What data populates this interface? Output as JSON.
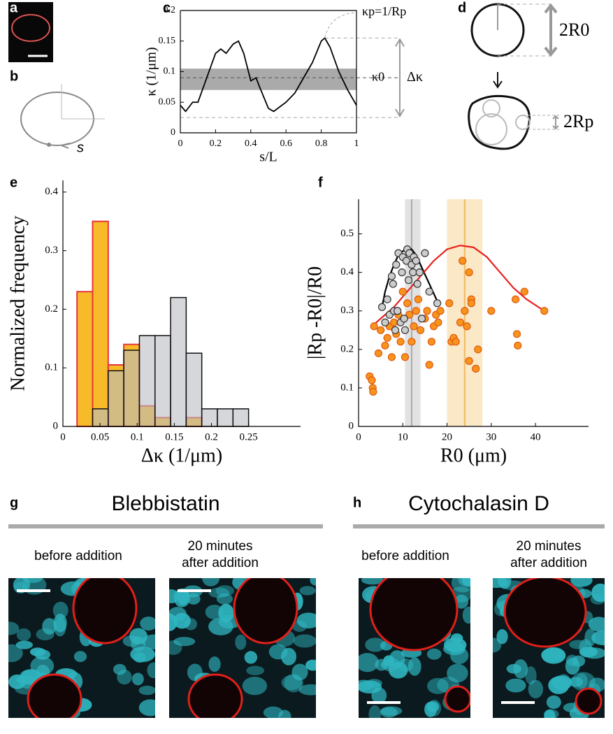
{
  "panel_labels": [
    "a",
    "b",
    "c",
    "d",
    "e",
    "f",
    "g",
    "h"
  ],
  "diagrams": {
    "b_label": "s",
    "d_labels": [
      "2R0",
      "2Rp"
    ]
  },
  "chart_data": [
    {
      "type": "line",
      "xlabel": "s/L",
      "ylabel": "κ (1/μm)",
      "xlim": [
        0,
        1
      ],
      "ylim": [
        0,
        0.2
      ],
      "xticks": [
        0,
        0.2,
        0.4,
        0.6,
        0.8,
        1
      ],
      "yticks": [
        0,
        0.05,
        0.1,
        0.15,
        0.2
      ],
      "x": [
        0,
        0.03,
        0.07,
        0.1,
        0.15,
        0.2,
        0.23,
        0.26,
        0.3,
        0.33,
        0.36,
        0.4,
        0.43,
        0.45,
        0.5,
        0.53,
        0.6,
        0.65,
        0.7,
        0.75,
        0.8,
        0.82,
        0.85,
        0.9,
        0.95,
        1
      ],
      "values": [
        0.045,
        0.035,
        0.05,
        0.05,
        0.09,
        0.13,
        0.137,
        0.13,
        0.145,
        0.15,
        0.13,
        0.085,
        0.09,
        0.075,
        0.04,
        0.035,
        0.05,
        0.065,
        0.09,
        0.115,
        0.15,
        0.155,
        0.14,
        0.1,
        0.07,
        0.045
      ],
      "color": "#000000",
      "band": [
        0.07,
        0.105
      ],
      "reference_lines": [
        0.155,
        0.09,
        0.025
      ],
      "annotations": [
        "κp=1/Rp",
        "κ0",
        "Δκ"
      ]
    },
    {
      "type": "histogram",
      "xlabel": "Δκ (1/μm)",
      "ylabel": "Normalized frequency",
      "xlim": [
        0,
        0.32
      ],
      "ylim": [
        0,
        0.42
      ],
      "xticks": [
        0,
        0.05,
        0.1,
        0.15,
        0.2,
        0.25
      ],
      "yticks": [
        0,
        0.1,
        0.2,
        0.3,
        0.4
      ],
      "bins": [
        0.019,
        0.04,
        0.061,
        0.082,
        0.103,
        0.124,
        0.145,
        0.166,
        0.187,
        0.208,
        0.229,
        0.25
      ],
      "series": [
        {
          "color": "#f7bb2a",
          "values": [
            0.23,
            0.35,
            0.105,
            0.14,
            0.035,
            0.015,
            0,
            0.015,
            0,
            0,
            0
          ]
        },
        {
          "color": "#b9bcc2",
          "values": [
            0,
            0.03,
            0.095,
            0.13,
            0.155,
            0.155,
            0.22,
            0.125,
            0.03,
            0.03,
            0.03
          ]
        }
      ]
    },
    {
      "type": "scatter",
      "xlabel": "R0 (μm)",
      "ylabel": "|Rp -R0|/R0",
      "xlim": [
        0,
        52
      ],
      "ylim": [
        0,
        0.59
      ],
      "xticks": [
        0,
        10,
        20,
        30,
        40
      ],
      "yticks": [
        0,
        0.1,
        0.2,
        0.3,
        0.4,
        0.5
      ],
      "bands": [
        {
          "range": [
            10.5,
            14
          ],
          "center": 12,
          "color": "#cfcfcf"
        },
        {
          "range": [
            20,
            28
          ],
          "center": 24,
          "color": "#f7d9a0"
        }
      ],
      "series": [
        {
          "color": "#cccccc",
          "x": [
            5.3,
            6,
            6.5,
            7,
            7.5,
            7.8,
            8,
            8.3,
            8.5,
            8.8,
            9,
            9.5,
            9.8,
            10,
            10.3,
            10.5,
            10.8,
            11,
            11.3,
            11.5,
            12,
            12.3,
            12.5,
            13,
            13.3,
            13.8,
            14.3,
            15,
            16,
            17.8
          ],
          "values": [
            0.31,
            0.27,
            0.33,
            0.29,
            0.39,
            0.37,
            0.3,
            0.25,
            0.42,
            0.3,
            0.45,
            0.27,
            0.4,
            0.44,
            0.28,
            0.25,
            0.43,
            0.46,
            0.38,
            0.45,
            0.42,
            0.4,
            0.44,
            0.43,
            0.37,
            0.4,
            0.28,
            0.45,
            0.35,
            0.32
          ]
        },
        {
          "color": "#f7941d",
          "x": [
            2.5,
            3,
            3.2,
            3.3,
            3.5,
            4.5,
            5,
            6,
            6.5,
            7,
            7.5,
            8,
            8.5,
            9,
            9.5,
            10,
            10.5,
            11,
            11.5,
            12,
            12.5,
            13,
            13.5,
            14,
            15,
            15.5,
            16,
            16.5,
            17,
            17.5,
            18,
            18.5,
            20.5,
            21,
            21.5,
            22,
            23,
            23.5,
            24,
            24.5,
            25,
            25,
            25.5,
            25.5,
            26.5,
            27,
            30,
            35.5,
            35.8,
            36,
            37.5,
            42
          ],
          "values": [
            0.13,
            0.12,
            0.1,
            0.09,
            0.26,
            0.19,
            0.25,
            0.21,
            0.23,
            0.26,
            0.18,
            0.27,
            0.24,
            0.29,
            0.22,
            0.35,
            0.18,
            0.32,
            0.29,
            0.22,
            0.26,
            0.3,
            0.33,
            0.25,
            0.28,
            0.3,
            0.16,
            0.22,
            0.26,
            0.29,
            0.27,
            0.3,
            0.32,
            0.22,
            0.23,
            0.22,
            0.27,
            0.43,
            0.3,
            0.26,
            0.4,
            0.17,
            0.33,
            0.32,
            0.15,
            0.2,
            0.3,
            0.33,
            0.24,
            0.21,
            0.35,
            0.3
          ]
        }
      ],
      "fits": [
        {
          "color": "#000000",
          "x": [
            5.3,
            6,
            7,
            8,
            9,
            10,
            11,
            12,
            13,
            14,
            15,
            16,
            17,
            18
          ],
          "values": [
            0.31,
            0.35,
            0.39,
            0.42,
            0.445,
            0.455,
            0.465,
            0.46,
            0.445,
            0.42,
            0.395,
            0.37,
            0.345,
            0.32
          ]
        },
        {
          "color": "#e8221e",
          "x": [
            3,
            5,
            8,
            11,
            14,
            17,
            20,
            23,
            26,
            29,
            32,
            35,
            38,
            42
          ],
          "values": [
            0.26,
            0.28,
            0.31,
            0.35,
            0.39,
            0.43,
            0.46,
            0.47,
            0.465,
            0.44,
            0.4,
            0.36,
            0.33,
            0.3
          ]
        }
      ]
    }
  ],
  "panel_g": {
    "title": "Blebbistatin",
    "captions": [
      "before addition",
      "20 minutes after addition"
    ]
  },
  "panel_h": {
    "title": "Cytochalasin D",
    "captions": [
      "before addition",
      "20 minutes after addition"
    ]
  }
}
